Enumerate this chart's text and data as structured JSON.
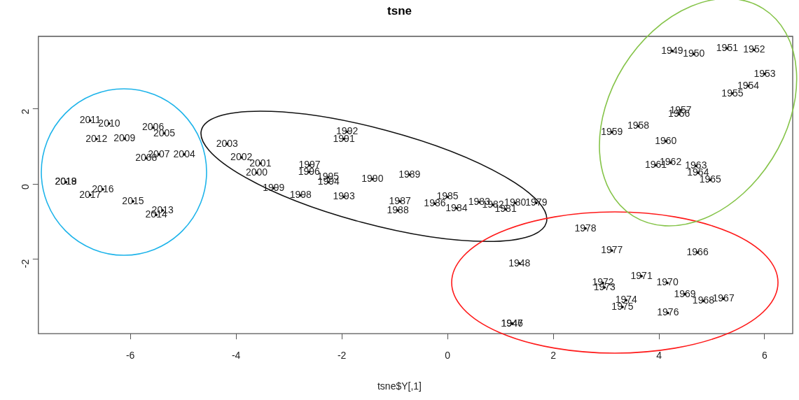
{
  "chart_data": {
    "type": "scatter",
    "title": "tsne",
    "xlabel": "tsne$Y[,1]",
    "xlim": [
      -7.74,
      6.53
    ],
    "ylim": [
      -3.98,
      3.93
    ],
    "xticks": [
      -6,
      -4,
      -2,
      0,
      2,
      4,
      6
    ],
    "yticks": [
      -2,
      0,
      2
    ],
    "grid": false,
    "legend": false,
    "marker": "circle",
    "series": [
      {
        "color": "#000000",
        "x": [
          1.22,
          1.22,
          1.36,
          4.25,
          4.66,
          5.29,
          5.8,
          6.0,
          5.69,
          5.39,
          4.38,
          4.41,
          3.61,
          3.11,
          4.13,
          3.94,
          4.22,
          4.7,
          4.74,
          4.97,
          4.73,
          5.22,
          4.84,
          4.49,
          4.16,
          3.67,
          2.94,
          2.97,
          3.38,
          3.31,
          4.17,
          3.11,
          2.61,
          1.68,
          1.28,
          1.1,
          0.86,
          0.6,
          0.17,
          0.0,
          -0.24,
          -0.9,
          -0.94,
          -0.72,
          -1.42,
          -1.96,
          -1.9,
          -1.96,
          -2.25,
          -2.26,
          -2.62,
          -2.61,
          -2.78,
          -3.29,
          -3.61,
          -3.54,
          -3.9,
          -4.17,
          -4.98,
          -5.36,
          -5.57,
          -5.46,
          -5.7,
          -6.11,
          -6.4,
          -6.76,
          -6.64,
          -5.39,
          -5.51,
          -5.95,
          -6.52,
          -6.76,
          -7.22,
          -7.22
        ],
        "values": [
          -3.71,
          -3.71,
          -2.11,
          3.54,
          3.46,
          3.61,
          3.57,
          2.93,
          2.61,
          2.41,
          1.86,
          1.96,
          1.54,
          1.38,
          1.14,
          0.5,
          0.57,
          0.48,
          0.3,
          0.11,
          -1.82,
          -3.05,
          -3.11,
          -2.93,
          -2.63,
          -2.45,
          -2.63,
          -2.75,
          -3.09,
          -3.27,
          -3.43,
          -1.77,
          -1.18,
          -0.5,
          -0.5,
          -0.67,
          -0.55,
          -0.48,
          -0.64,
          -0.34,
          -0.52,
          -0.46,
          -0.7,
          0.25,
          0.13,
          1.2,
          1.39,
          -0.34,
          0.05,
          0.18,
          0.32,
          0.5,
          -0.3,
          -0.11,
          0.3,
          0.55,
          0.71,
          1.07,
          0.79,
          1.35,
          1.5,
          0.79,
          0.69,
          1.21,
          1.61,
          1.69,
          1.2,
          -0.7,
          -0.82,
          -0.46,
          -0.14,
          -0.29,
          0.05,
          0.05
        ]
      }
    ],
    "annotations": [
      {
        "text": "1946",
        "x": 1.22,
        "y": -3.71
      },
      {
        "text": "1947",
        "x": 1.22,
        "y": -3.71
      },
      {
        "text": "1948",
        "x": 1.36,
        "y": -2.11
      },
      {
        "text": "1949",
        "x": 4.25,
        "y": 3.54
      },
      {
        "text": "1950",
        "x": 4.66,
        "y": 3.46
      },
      {
        "text": "1951",
        "x": 5.29,
        "y": 3.61
      },
      {
        "text": "1952",
        "x": 5.8,
        "y": 3.57
      },
      {
        "text": "1953",
        "x": 6.0,
        "y": 2.93
      },
      {
        "text": "1954",
        "x": 5.69,
        "y": 2.61
      },
      {
        "text": "1955",
        "x": 5.39,
        "y": 2.41
      },
      {
        "text": "1956",
        "x": 4.38,
        "y": 1.86
      },
      {
        "text": "1957",
        "x": 4.41,
        "y": 1.96
      },
      {
        "text": "1958",
        "x": 3.61,
        "y": 1.54
      },
      {
        "text": "1959",
        "x": 3.11,
        "y": 1.38
      },
      {
        "text": "1960",
        "x": 4.13,
        "y": 1.14
      },
      {
        "text": "1961",
        "x": 3.94,
        "y": 0.5
      },
      {
        "text": "1962",
        "x": 4.22,
        "y": 0.57
      },
      {
        "text": "1963",
        "x": 4.7,
        "y": 0.48
      },
      {
        "text": "1964",
        "x": 4.74,
        "y": 0.3
      },
      {
        "text": "1965",
        "x": 4.97,
        "y": 0.11
      },
      {
        "text": "1966",
        "x": 4.73,
        "y": -1.82
      },
      {
        "text": "1967",
        "x": 5.22,
        "y": -3.05
      },
      {
        "text": "1968",
        "x": 4.84,
        "y": -3.11
      },
      {
        "text": "1969",
        "x": 4.49,
        "y": -2.93
      },
      {
        "text": "1970",
        "x": 4.16,
        "y": -2.63
      },
      {
        "text": "1971",
        "x": 3.67,
        "y": -2.45
      },
      {
        "text": "1972",
        "x": 2.94,
        "y": -2.63
      },
      {
        "text": "1973",
        "x": 2.97,
        "y": -2.75
      },
      {
        "text": "1974",
        "x": 3.38,
        "y": -3.09
      },
      {
        "text": "1975",
        "x": 3.31,
        "y": -3.27
      },
      {
        "text": "1976",
        "x": 4.17,
        "y": -3.43
      },
      {
        "text": "1977",
        "x": 3.11,
        "y": -1.77
      },
      {
        "text": "1978",
        "x": 2.61,
        "y": -1.18
      },
      {
        "text": "1979",
        "x": 1.68,
        "y": -0.5
      },
      {
        "text": "1980",
        "x": 1.28,
        "y": -0.5
      },
      {
        "text": "1981",
        "x": 1.1,
        "y": -0.67
      },
      {
        "text": "1982",
        "x": 0.86,
        "y": -0.55
      },
      {
        "text": "1983",
        "x": 0.6,
        "y": -0.48
      },
      {
        "text": "1984",
        "x": 0.17,
        "y": -0.64
      },
      {
        "text": "1985",
        "x": 0.0,
        "y": -0.34
      },
      {
        "text": "1986",
        "x": -0.24,
        "y": -0.52
      },
      {
        "text": "1987",
        "x": -0.9,
        "y": -0.46
      },
      {
        "text": "1988",
        "x": -0.94,
        "y": -0.7
      },
      {
        "text": "1989",
        "x": -0.72,
        "y": 0.25
      },
      {
        "text": "1990",
        "x": -1.42,
        "y": 0.13
      },
      {
        "text": "1991",
        "x": -1.96,
        "y": 1.2
      },
      {
        "text": "1992",
        "x": -1.9,
        "y": 1.39
      },
      {
        "text": "1993",
        "x": -1.96,
        "y": -0.34
      },
      {
        "text": "1994",
        "x": -2.25,
        "y": 0.05
      },
      {
        "text": "1995",
        "x": -2.26,
        "y": 0.18
      },
      {
        "text": "1996",
        "x": -2.62,
        "y": 0.32
      },
      {
        "text": "1997",
        "x": -2.61,
        "y": 0.5
      },
      {
        "text": "1998",
        "x": -2.78,
        "y": -0.3
      },
      {
        "text": "1999",
        "x": -3.29,
        "y": -0.11
      },
      {
        "text": "2000",
        "x": -3.61,
        "y": 0.3
      },
      {
        "text": "2001",
        "x": -3.54,
        "y": 0.55
      },
      {
        "text": "2002",
        "x": -3.9,
        "y": 0.71
      },
      {
        "text": "2003",
        "x": -4.17,
        "y": 1.07
      },
      {
        "text": "2004",
        "x": -4.98,
        "y": 0.79
      },
      {
        "text": "2005",
        "x": -5.36,
        "y": 1.35
      },
      {
        "text": "2006",
        "x": -5.57,
        "y": 1.5
      },
      {
        "text": "2007",
        "x": -5.46,
        "y": 0.79
      },
      {
        "text": "2008",
        "x": -5.7,
        "y": 0.69
      },
      {
        "text": "2009",
        "x": -6.11,
        "y": 1.21
      },
      {
        "text": "2010",
        "x": -6.4,
        "y": 1.61
      },
      {
        "text": "2011",
        "x": -6.76,
        "y": 1.69
      },
      {
        "text": "2012",
        "x": -6.64,
        "y": 1.2
      },
      {
        "text": "2013",
        "x": -5.39,
        "y": -0.7
      },
      {
        "text": "2014",
        "x": -5.51,
        "y": -0.82
      },
      {
        "text": "2015",
        "x": -5.95,
        "y": -0.46
      },
      {
        "text": "2016",
        "x": -6.52,
        "y": -0.14
      },
      {
        "text": "2017",
        "x": -6.76,
        "y": -0.29
      },
      {
        "text": "2018",
        "x": -7.22,
        "y": 0.05
      },
      {
        "text": "2019",
        "x": -7.22,
        "y": 0.05
      }
    ]
  }
}
